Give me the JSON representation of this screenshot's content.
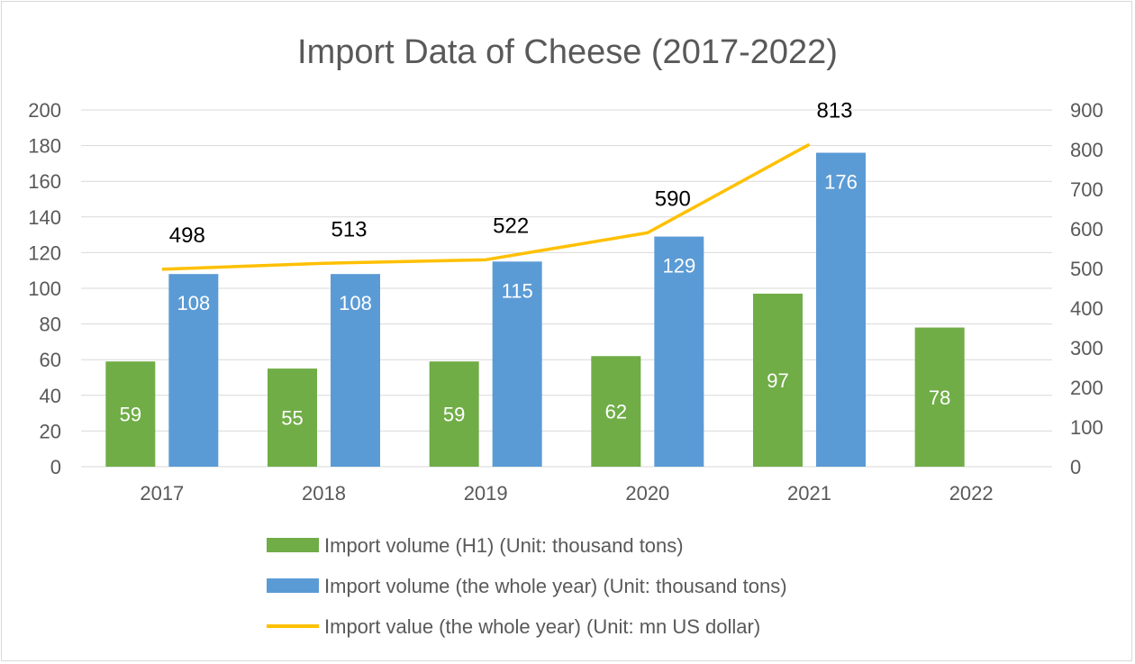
{
  "chart_data": {
    "type": "bar",
    "title": "Import Data of Cheese (2017-2022)",
    "categories": [
      "2017",
      "2018",
      "2019",
      "2020",
      "2021",
      "2022"
    ],
    "series": [
      {
        "name": "Import volume (H1) (Unit: thousand tons)",
        "type": "bar",
        "axis": "left",
        "color": "#70ad47",
        "values": [
          59,
          55,
          59,
          62,
          97,
          78
        ]
      },
      {
        "name": "Import volume (the whole year) (Unit: thousand tons)",
        "type": "bar",
        "axis": "left",
        "color": "#5b9bd5",
        "values": [
          108,
          108,
          115,
          129,
          176,
          null
        ]
      },
      {
        "name": "Import value (the whole year) (Unit: mn US dollar)",
        "type": "line",
        "axis": "right",
        "color": "#ffc000",
        "values": [
          498,
          513,
          522,
          590,
          813,
          null
        ]
      }
    ],
    "y_left": {
      "min": 0,
      "max": 200,
      "step": 20,
      "ticks": [
        "0",
        "20",
        "40",
        "60",
        "80",
        "100",
        "120",
        "140",
        "160",
        "180",
        "200"
      ]
    },
    "y_right": {
      "min": 0,
      "max": 900,
      "step": 100,
      "ticks": [
        "0",
        "100",
        "200",
        "300",
        "400",
        "500",
        "600",
        "700",
        "800",
        "900"
      ]
    },
    "grid": true,
    "legend_position": "bottom"
  }
}
